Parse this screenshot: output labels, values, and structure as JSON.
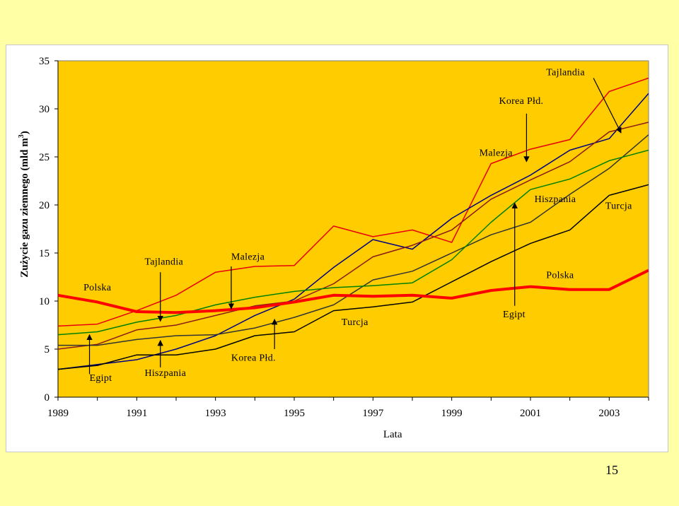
{
  "slide_number": "15",
  "chart_data": {
    "type": "line",
    "title": "",
    "xlabel": "Lata",
    "ylabel": "Zużycie gazu ziemnego (mld m",
    "ylabel_sup": "3",
    "ylabel_close": ")",
    "xlim": [
      1989,
      2004
    ],
    "ylim": [
      0,
      35
    ],
    "yticks": [
      0,
      5,
      10,
      15,
      20,
      25,
      30,
      35
    ],
    "xticks": [
      1989,
      1991,
      1993,
      1995,
      1997,
      1999,
      2001,
      2003
    ],
    "grid": false,
    "colors": {
      "plot_bg": "#ffcc00",
      "page_bg": "#ffffa6"
    },
    "x": [
      1989,
      1990,
      1991,
      1992,
      1993,
      1994,
      1995,
      1996,
      1997,
      1998,
      1999,
      2000,
      2001,
      2002,
      2003,
      2004
    ],
    "series": [
      {
        "name": "Polska",
        "color": "#ff0000",
        "width": 4,
        "values": [
          10.6,
          9.9,
          8.9,
          8.8,
          9.0,
          9.3,
          9.9,
          10.6,
          10.5,
          10.6,
          10.3,
          11.1,
          11.5,
          11.2,
          11.2,
          13.2
        ]
      },
      {
        "name": "Tajlandia",
        "color": "#e8000b",
        "width": 1.5,
        "values": [
          7.4,
          7.6,
          9.0,
          10.6,
          13.0,
          13.6,
          13.7,
          17.8,
          16.7,
          17.4,
          16.1,
          24.3,
          25.8,
          26.8,
          31.8,
          33.2
        ]
      },
      {
        "name": "Malezja",
        "color": "#000080",
        "width": 1.5,
        "values": [
          2.9,
          3.4,
          3.9,
          5.0,
          6.4,
          8.5,
          10.2,
          13.5,
          16.4,
          15.4,
          18.6,
          21.0,
          23.1,
          25.7,
          26.9,
          31.6
        ]
      },
      {
        "name": "Korea Płd.",
        "color": "#000000",
        "width": 1.5,
        "values": [
          2.9,
          3.3,
          4.4,
          4.4,
          5.0,
          6.4,
          6.8,
          9.0,
          9.4,
          9.9,
          12.0,
          14.1,
          16.0,
          17.4,
          21.0,
          22.1
        ]
      },
      {
        "name": "Egipt",
        "color": "#8b1a1a",
        "width": 1.5,
        "values": [
          5.0,
          5.5,
          7.0,
          7.5,
          8.5,
          9.5,
          10.0,
          11.8,
          14.6,
          15.8,
          17.4,
          20.6,
          22.6,
          24.5,
          27.6,
          28.6
        ]
      },
      {
        "name": "Hiszpania",
        "color": "#333333",
        "width": 1.5,
        "values": [
          5.4,
          5.4,
          6.0,
          6.4,
          6.5,
          7.2,
          8.3,
          9.6,
          12.2,
          13.1,
          15.0,
          16.9,
          18.2,
          21.1,
          23.8,
          27.3
        ]
      },
      {
        "name": "Turcja",
        "color": "#008000",
        "width": 1.5,
        "values": [
          6.5,
          6.8,
          7.8,
          8.5,
          9.6,
          10.4,
          11.0,
          11.4,
          11.6,
          11.9,
          14.3,
          18.2,
          21.6,
          22.7,
          24.6,
          25.7
        ]
      }
    ],
    "annotations": [
      {
        "text": "Polska",
        "x": 1990.0,
        "y": 11.1,
        "anchor": "middle"
      },
      {
        "text": "Egipt",
        "x": 1989.8,
        "y": 1.7,
        "anchor": "start",
        "arrow": [
          1989.8,
          2.4,
          1989.8,
          6.5
        ]
      },
      {
        "text": "Tajlandia",
        "x": 1991.2,
        "y": 13.8,
        "anchor": "start",
        "arrow": [
          1991.6,
          13.0,
          1991.6,
          7.9
        ]
      },
      {
        "text": "Hiszpania",
        "x": 1991.2,
        "y": 2.2,
        "anchor": "start",
        "arrow": [
          1991.6,
          3.1,
          1991.6,
          5.9
        ]
      },
      {
        "text": "Malezja",
        "x": 1993.4,
        "y": 14.3,
        "anchor": "start",
        "arrow": [
          1993.4,
          13.6,
          1993.4,
          9.2
        ]
      },
      {
        "text": "Korea Płd.",
        "x": 1993.4,
        "y": 3.8,
        "anchor": "start",
        "arrow": [
          1994.5,
          5.0,
          1994.5,
          8.1
        ]
      },
      {
        "text": "Turcja",
        "x": 1996.2,
        "y": 7.5,
        "anchor": "start"
      },
      {
        "text": "Malezja",
        "x": 1999.7,
        "y": 25.1,
        "anchor": "start"
      },
      {
        "text": "Korea Płd.",
        "x": 2000.2,
        "y": 30.5,
        "anchor": "start",
        "arrow": [
          2000.9,
          29.5,
          2000.9,
          24.5
        ]
      },
      {
        "text": "Tajlandia",
        "x": 2001.4,
        "y": 33.5,
        "anchor": "start",
        "arrow": [
          2002.6,
          33.2,
          2003.3,
          27.5
        ]
      },
      {
        "text": "Egipt",
        "x": 2000.3,
        "y": 8.3,
        "anchor": "start",
        "arrow": [
          2000.6,
          9.5,
          2000.6,
          20.2
        ]
      },
      {
        "text": "Hiszpania",
        "x": 2001.1,
        "y": 20.3,
        "anchor": "start"
      },
      {
        "text": "Turcja",
        "x": 2002.9,
        "y": 19.6,
        "anchor": "start"
      },
      {
        "text": "Polska",
        "x": 2001.4,
        "y": 12.4,
        "anchor": "start"
      }
    ]
  }
}
